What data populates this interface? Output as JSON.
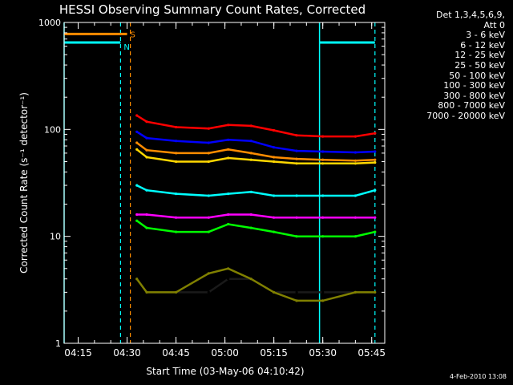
{
  "colors": {
    "background": "#000000",
    "axis": "#ffffff",
    "flag_cyan": "#00ffff",
    "flag_orange": "#ff8c00"
  },
  "flags": [
    {
      "label": "N",
      "color": "#00ffff"
    },
    {
      "label": "S",
      "color": "#ff8c00"
    }
  ],
  "chart_data": {
    "type": "line",
    "title": "HESSI Observing Summary Count Rates, Corrected",
    "xlabel": "Start Time (03-May-06 04:10:42)",
    "ylabel": "Corrected Count Rate (s⁻¹ detector⁻¹)",
    "yscale": "log",
    "ylim": [
      1,
      1000
    ],
    "xlim": [
      "04:10:42",
      "05:49:00"
    ],
    "x_ticks": [
      "04:15",
      "04:30",
      "04:45",
      "05:00",
      "05:15",
      "05:30",
      "05:45"
    ],
    "y_ticks": [
      "1",
      "10",
      "100",
      "1000"
    ],
    "legend_title": [
      "Det 1,3,4,5,6,9,",
      "Att 0"
    ],
    "legend_position": "right",
    "x": [
      "04:33",
      "04:36",
      "04:45",
      "04:55",
      "05:01",
      "05:08",
      "05:15",
      "05:22",
      "05:30",
      "05:40",
      "05:46"
    ],
    "series": [
      {
        "name": "3 - 6 keV",
        "color": "#000000",
        "values": [
          4,
          3,
          3,
          3,
          4,
          4,
          3,
          3,
          3,
          3,
          3
        ]
      },
      {
        "name": "6 - 12 keV",
        "color": "#ff00ff",
        "values": [
          16,
          16,
          15,
          15,
          16,
          16,
          15,
          15,
          15,
          15,
          15
        ]
      },
      {
        "name": "12 - 25 keV",
        "color": "#00ff00",
        "values": [
          14,
          12,
          11,
          11,
          13,
          12,
          11,
          10,
          10,
          10,
          11
        ]
      },
      {
        "name": "25 - 50 keV",
        "color": "#00ffff",
        "values": [
          30,
          27,
          25,
          24,
          25,
          26,
          24,
          24,
          24,
          24,
          27
        ]
      },
      {
        "name": "50 - 100 keV",
        "color": "#ffd700",
        "values": [
          65,
          55,
          50,
          50,
          54,
          52,
          50,
          48,
          48,
          48,
          49
        ]
      },
      {
        "name": "100 - 300 keV",
        "color": "#ff0000",
        "values": [
          135,
          118,
          105,
          102,
          110,
          108,
          98,
          88,
          86,
          86,
          92
        ]
      },
      {
        "name": "300 - 800 keV",
        "color": "#0000ff",
        "values": [
          95,
          83,
          78,
          75,
          80,
          78,
          68,
          63,
          62,
          61,
          62
        ]
      },
      {
        "name": "800 - 7000 keV",
        "color": "#ff8c00",
        "values": [
          75,
          64,
          60,
          60,
          65,
          60,
          55,
          53,
          52,
          51,
          52
        ]
      },
      {
        "name": "7000 - 20000 keV",
        "color": "#808000",
        "values": [
          4,
          3,
          3,
          4.5,
          5,
          4,
          3,
          2.5,
          2.5,
          3,
          3
        ]
      }
    ],
    "flag_segments": [
      {
        "flag": "N",
        "level": 650,
        "start": "04:10:42",
        "end": "04:28",
        "color": "#00ffff"
      },
      {
        "flag": "N",
        "level": 650,
        "start": "05:29",
        "end": "05:46",
        "color": "#00ffff"
      },
      {
        "flag": "S",
        "level": 780,
        "start": "04:10:42",
        "end": "04:30",
        "color": "#ff8c00"
      }
    ],
    "dashed_markers": [
      {
        "time": "04:28",
        "color": "#00ffff"
      },
      {
        "time": "04:31",
        "color": "#ff8c00"
      },
      {
        "time": "05:46",
        "color": "#00ffff"
      }
    ],
    "solid_markers": [
      {
        "time": "04:10:42",
        "color": "#00ffff"
      },
      {
        "time": "05:29",
        "color": "#00ffff"
      }
    ]
  },
  "footer": "4-Feb-2010 13:08"
}
